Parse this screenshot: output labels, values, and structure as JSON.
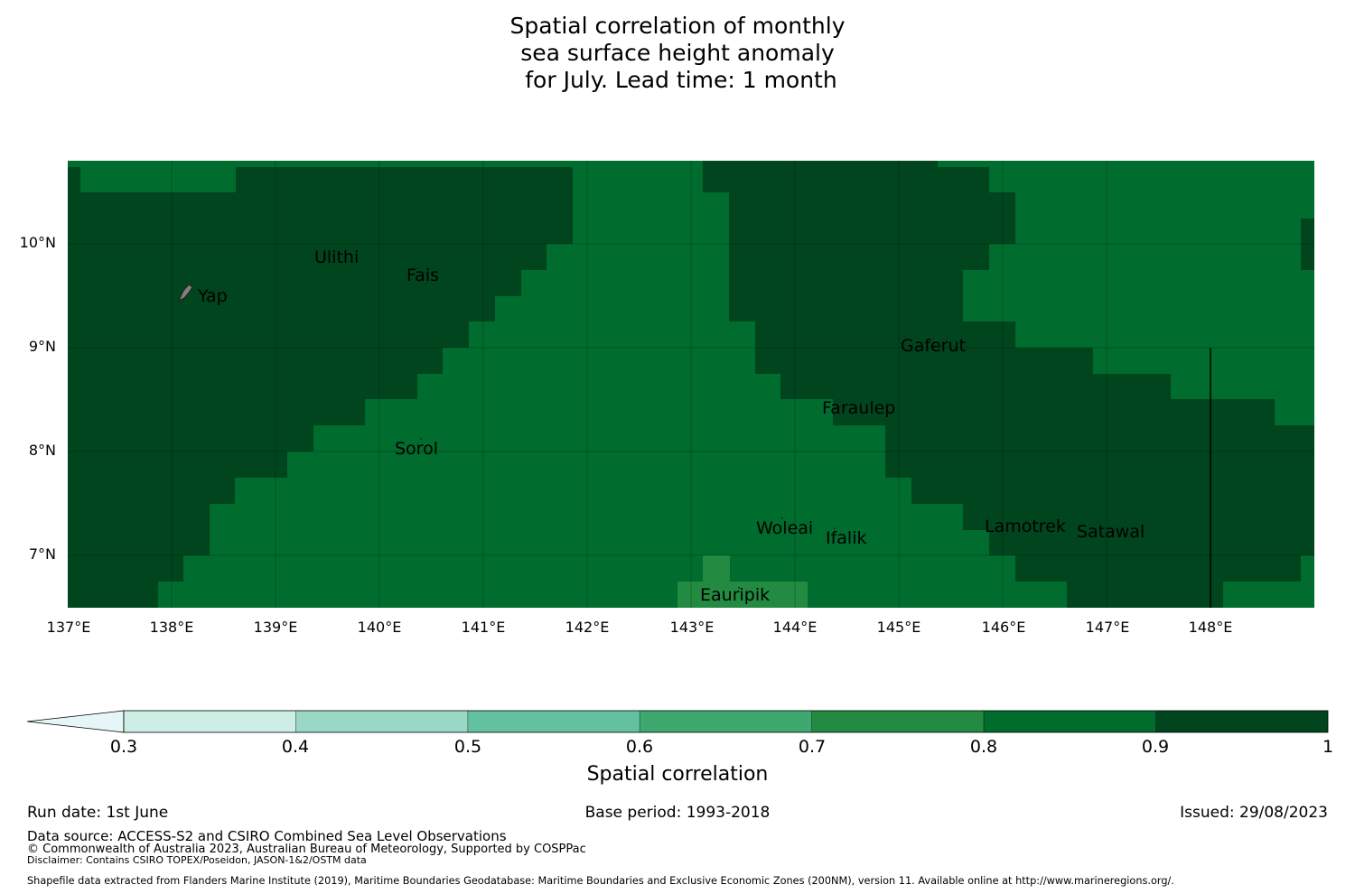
{
  "title_lines": [
    "Spatial correlation of monthly",
    "sea surface height anomaly",
    " for July. Lead time: 1 month"
  ],
  "map": {
    "lat_ticks": [
      "10°N",
      "9°N",
      "8°N",
      "7°N"
    ],
    "lon_ticks": [
      "137°E",
      "138°E",
      "139°E",
      "140°E",
      "141°E",
      "142°E",
      "143°E",
      "144°E",
      "145°E",
      "146°E",
      "147°E",
      "148°E"
    ],
    "islands": [
      {
        "name": "Ulithi",
        "lon": 139.8,
        "lat": 9.85
      },
      {
        "name": "Fais",
        "lon": 140.5,
        "lat": 9.75
      },
      {
        "name": "Yap",
        "lon": 138.1,
        "lat": 9.5
      },
      {
        "name": "Gaferut",
        "lon": 145.4,
        "lat": 9.2
      },
      {
        "name": "Faraulep",
        "lon": 144.5,
        "lat": 8.6
      },
      {
        "name": "Sorol",
        "lon": 140.4,
        "lat": 8.15
      },
      {
        "name": "Woleai",
        "lon": 143.9,
        "lat": 7.35
      },
      {
        "name": "Ifalik",
        "lon": 144.45,
        "lat": 7.25
      },
      {
        "name": "Lamotrek",
        "lon": 146.3,
        "lat": 7.5
      },
      {
        "name": "Satawal",
        "lon": 147.05,
        "lat": 7.35
      },
      {
        "name": "Eauripik",
        "lon": 143.0,
        "lat": 6.7
      }
    ]
  },
  "colorbar": {
    "label": "Spatial correlation",
    "ticks": [
      "0.3",
      "0.4",
      "0.5",
      "0.6",
      "0.7",
      "0.8",
      "0.9",
      "1"
    ],
    "colors": [
      "#cceee4",
      "#99d8c5",
      "#64c19f",
      "#3ea96f",
      "#238a42",
      "#006c2d",
      "#00451d"
    ],
    "extend_color": "#e6f6f8"
  },
  "footer": {
    "run_date": "Run date: 1st June",
    "base_period": "Base period: 1993-2018",
    "issued": "Issued: 29/08/2023",
    "data_source": "Data source: ACCESS-S2 and CSIRO Combined Sea Level Observations",
    "copyright": "© Commonwealth of Australia 2023, Australian Bureau of Meteorology, Supported by COSPPac",
    "disclaimer": "Disclaimer: Contains CSIRO TOPEX/Poseidon, JASON-1&2/OSTM data",
    "shapefile": "Shapefile data extracted from Flanders Marine Institute (2019), Maritime Boundaries Geodatabase: Maritime Boundaries and Exclusive Economic Zones (200NM), version 11. Available online at http://www.marineregions.org/."
  }
}
